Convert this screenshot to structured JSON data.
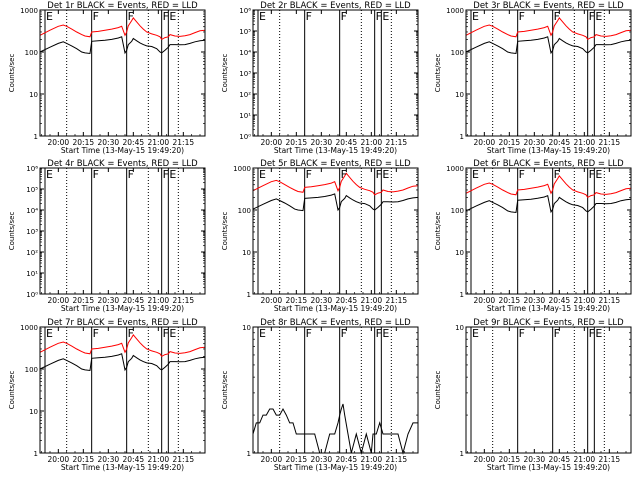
{
  "figure": {
    "tick_labels_x": [
      "20:00",
      "20:15",
      "20:30",
      "20:45",
      "21:00",
      "21:15"
    ],
    "xlabel": "Start Time (13-May-15 19:49:20)",
    "ylabel": "Counts/sec",
    "colors": {
      "events": "#000000",
      "lld": "#ff0000",
      "axes": "#000000",
      "background": "#ffffff"
    },
    "dotted_lines_x": [
      "20:05",
      "20:54",
      "21:12"
    ],
    "panels": [
      {
        "title": "Det 1r BLACK = Events, RED = LLD",
        "ylog": true,
        "ylim": [
          1,
          1000
        ],
        "yticks": [
          "1000",
          "100",
          "10",
          "1"
        ],
        "markers": [
          {
            "t": "19:52",
            "label": "E"
          },
          {
            "t": "20:20",
            "label": "F"
          },
          {
            "t": "20:41",
            "label": "F"
          },
          {
            "t": "21:02",
            "label": "F"
          },
          {
            "t": "21:06",
            "label": "E"
          }
        ],
        "series": [
          "events",
          "lld"
        ]
      },
      {
        "title": "Det 2r BLACK = Events, RED = LLD",
        "ylog": true,
        "ylim": [
          1,
          1000000
        ],
        "yticks": [
          "10⁶",
          "10⁵",
          "10⁴",
          "10³",
          "10²",
          "10¹",
          "10⁰"
        ],
        "markers": [
          {
            "t": "19:52",
            "label": "E"
          },
          {
            "t": "20:20",
            "label": "F"
          },
          {
            "t": "20:41",
            "label": "F"
          },
          {
            "t": "21:02",
            "label": "F"
          },
          {
            "t": "21:06",
            "label": "E"
          }
        ],
        "series": []
      },
      {
        "title": "Det 3r BLACK = Events, RED = LLD",
        "ylog": true,
        "ylim": [
          1,
          1000
        ],
        "yticks": [
          "1000",
          "100",
          "10",
          "1"
        ],
        "markers": [
          {
            "t": "19:52",
            "label": "E"
          },
          {
            "t": "20:20",
            "label": "F"
          },
          {
            "t": "20:41",
            "label": "F"
          },
          {
            "t": "21:02",
            "label": "F"
          },
          {
            "t": "21:06",
            "label": "E"
          }
        ],
        "series": [
          "events",
          "lld"
        ]
      },
      {
        "title": "Det 4r BLACK = Events, RED = LLD",
        "ylog": true,
        "ylim": [
          1,
          1000000
        ],
        "yticks": [
          "10⁶",
          "10⁵",
          "10⁴",
          "10³",
          "10²",
          "10¹",
          "10⁰"
        ],
        "markers": [
          {
            "t": "19:52",
            "label": "E"
          },
          {
            "t": "20:20",
            "label": "F"
          },
          {
            "t": "20:41",
            "label": "F"
          },
          {
            "t": "21:02",
            "label": "F"
          },
          {
            "t": "21:06",
            "label": "E"
          }
        ],
        "series": []
      },
      {
        "title": "Det 5r BLACK = Events, RED = LLD",
        "ylog": true,
        "ylim": [
          1,
          1000
        ],
        "yticks": [
          "1000",
          "100",
          "10",
          "1"
        ],
        "markers": [
          {
            "t": "19:52",
            "label": "E"
          },
          {
            "t": "20:20",
            "label": "F"
          },
          {
            "t": "20:41",
            "label": "F"
          },
          {
            "t": "21:02",
            "label": "F"
          },
          {
            "t": "21:06",
            "label": "E"
          }
        ],
        "series": [
          "events",
          "lld"
        ]
      },
      {
        "title": "Det 6r BLACK = Events, RED = LLD",
        "ylog": true,
        "ylim": [
          1,
          1000
        ],
        "yticks": [
          "1000",
          "100",
          "10",
          "1"
        ],
        "markers": [
          {
            "t": "19:52",
            "label": "E"
          },
          {
            "t": "20:20",
            "label": "F"
          },
          {
            "t": "20:41",
            "label": "F"
          },
          {
            "t": "21:02",
            "label": "F"
          },
          {
            "t": "21:06",
            "label": "E"
          }
        ],
        "series": [
          "events",
          "lld"
        ]
      },
      {
        "title": "Det 7r BLACK = Events, RED = LLD",
        "ylog": true,
        "ylim": [
          1,
          1000
        ],
        "yticks": [
          "1000",
          "100",
          "10",
          "1"
        ],
        "markers": [
          {
            "t": "19:52",
            "label": "E"
          },
          {
            "t": "20:20",
            "label": "F"
          },
          {
            "t": "20:41",
            "label": "F"
          },
          {
            "t": "21:02",
            "label": "F"
          },
          {
            "t": "21:06",
            "label": "E"
          }
        ],
        "series": [
          "events",
          "lld"
        ]
      },
      {
        "title": "Det 8r BLACK = Events, RED = LLD",
        "ylog": true,
        "ylim": [
          1,
          100
        ],
        "yticks": [
          "10",
          "1"
        ],
        "markers": [
          {
            "t": "19:52",
            "label": "E"
          },
          {
            "t": "20:20",
            "label": "F"
          },
          {
            "t": "20:41",
            "label": "F"
          },
          {
            "t": "21:02",
            "label": "F"
          },
          {
            "t": "21:06",
            "label": "E"
          }
        ],
        "series": [
          "events"
        ]
      },
      {
        "title": "Det 9r BLACK = Events, RED = LLD",
        "ylog": true,
        "ylim": [
          1,
          100
        ],
        "yticks": [
          "10",
          "1"
        ],
        "markers": [
          {
            "t": "19:52",
            "label": "E"
          },
          {
            "t": "20:20",
            "label": "F"
          },
          {
            "t": "20:41",
            "label": "F"
          },
          {
            "t": "21:02",
            "label": "F"
          },
          {
            "t": "21:06",
            "label": "E"
          }
        ],
        "series": []
      }
    ]
  },
  "chart_data": {
    "type": "line",
    "x_axis": "time (HH:MM, 13-May-15)",
    "xlim": [
      "19:49",
      "21:28"
    ],
    "series_templates": {
      "events_typical": {
        "name": "Events",
        "x": [
          "19:49",
          "19:55",
          "20:00",
          "20:03",
          "20:05",
          "20:08",
          "20:11",
          "20:14",
          "20:16",
          "20:19",
          "20:20",
          "20:24",
          "20:28",
          "20:32",
          "20:36",
          "20:38",
          "20:40",
          "20:41",
          "20:42",
          "20:44",
          "20:45",
          "20:47",
          "20:49",
          "20:51",
          "20:53",
          "20:56",
          "20:59",
          "21:01",
          "21:02",
          "21:04",
          "21:06",
          "21:07",
          "21:10",
          "21:13",
          "21:16",
          "21:19",
          "21:22",
          "21:25",
          "21:28"
        ],
        "y": [
          100,
          130,
          160,
          175,
          160,
          140,
          120,
          100,
          95,
          92,
          180,
          185,
          190,
          200,
          215,
          230,
          95,
          110,
          150,
          180,
          210,
          185,
          165,
          150,
          140,
          135,
          120,
          100,
          95,
          110,
          130,
          150,
          150,
          148,
          150,
          160,
          175,
          185,
          190
        ]
      },
      "lld_typical": {
        "name": "LLD",
        "x": [
          "19:49",
          "19:55",
          "20:00",
          "20:03",
          "20:05",
          "20:08",
          "20:11",
          "20:14",
          "20:16",
          "20:19",
          "20:20",
          "20:24",
          "20:28",
          "20:32",
          "20:36",
          "20:38",
          "20:40",
          "20:41",
          "20:42",
          "20:44",
          "20:45",
          "20:47",
          "20:49",
          "20:51",
          "20:53",
          "20:56",
          "20:59",
          "21:01",
          "21:02",
          "21:04",
          "21:06",
          "21:07",
          "21:10",
          "21:13",
          "21:16",
          "21:19",
          "21:22",
          "21:25",
          "21:28"
        ],
        "y": [
          250,
          330,
          410,
          440,
          410,
          350,
          300,
          260,
          240,
          230,
          300,
          310,
          330,
          350,
          380,
          410,
          250,
          300,
          420,
          560,
          650,
          520,
          420,
          350,
          300,
          270,
          250,
          230,
          200,
          220,
          230,
          260,
          240,
          235,
          245,
          260,
          290,
          320,
          330
        ]
      },
      "det8_events": {
        "name": "Events",
        "x": [
          "19:49",
          "19:51",
          "19:53",
          "19:55",
          "19:57",
          "19:59",
          "20:01",
          "20:03",
          "20:05",
          "20:07",
          "20:09",
          "20:11",
          "20:13",
          "20:15",
          "20:17",
          "20:19",
          "20:20",
          "20:23",
          "20:26",
          "20:29",
          "20:32",
          "20:35",
          "20:38",
          "20:40",
          "20:41",
          "20:42",
          "20:43",
          "20:44",
          "20:46",
          "20:48",
          "20:51",
          "20:54",
          "20:57",
          "21:00",
          "21:01",
          "21:03",
          "21:05",
          "21:07",
          "21:10",
          "21:13",
          "21:16",
          "21:19",
          "21:22",
          "21:25",
          "21:28"
        ],
        "y": [
          2,
          3,
          3,
          4,
          4,
          5,
          5,
          4,
          4,
          5,
          4,
          3,
          3,
          2,
          2,
          2,
          2,
          2,
          2,
          1,
          1,
          2,
          2,
          3,
          4,
          5,
          6,
          4,
          2,
          1,
          2,
          1,
          2,
          1,
          2,
          2,
          3,
          2,
          2,
          2,
          2,
          1,
          2,
          3,
          3
        ]
      }
    },
    "panel_series_map": {
      "Det 1r": {
        "events": 1.0,
        "lld": 1.0
      },
      "Det 3r": {
        "events": 1.0,
        "lld": 1.0
      },
      "Det 5r": {
        "events": 1.05,
        "lld": 1.15
      },
      "Det 6r": {
        "events": 0.95,
        "lld": 1.0
      },
      "Det 7r": {
        "events": 1.0,
        "lld": 1.0
      },
      "Det 8r": {
        "events_template": "det8_events"
      }
    }
  }
}
